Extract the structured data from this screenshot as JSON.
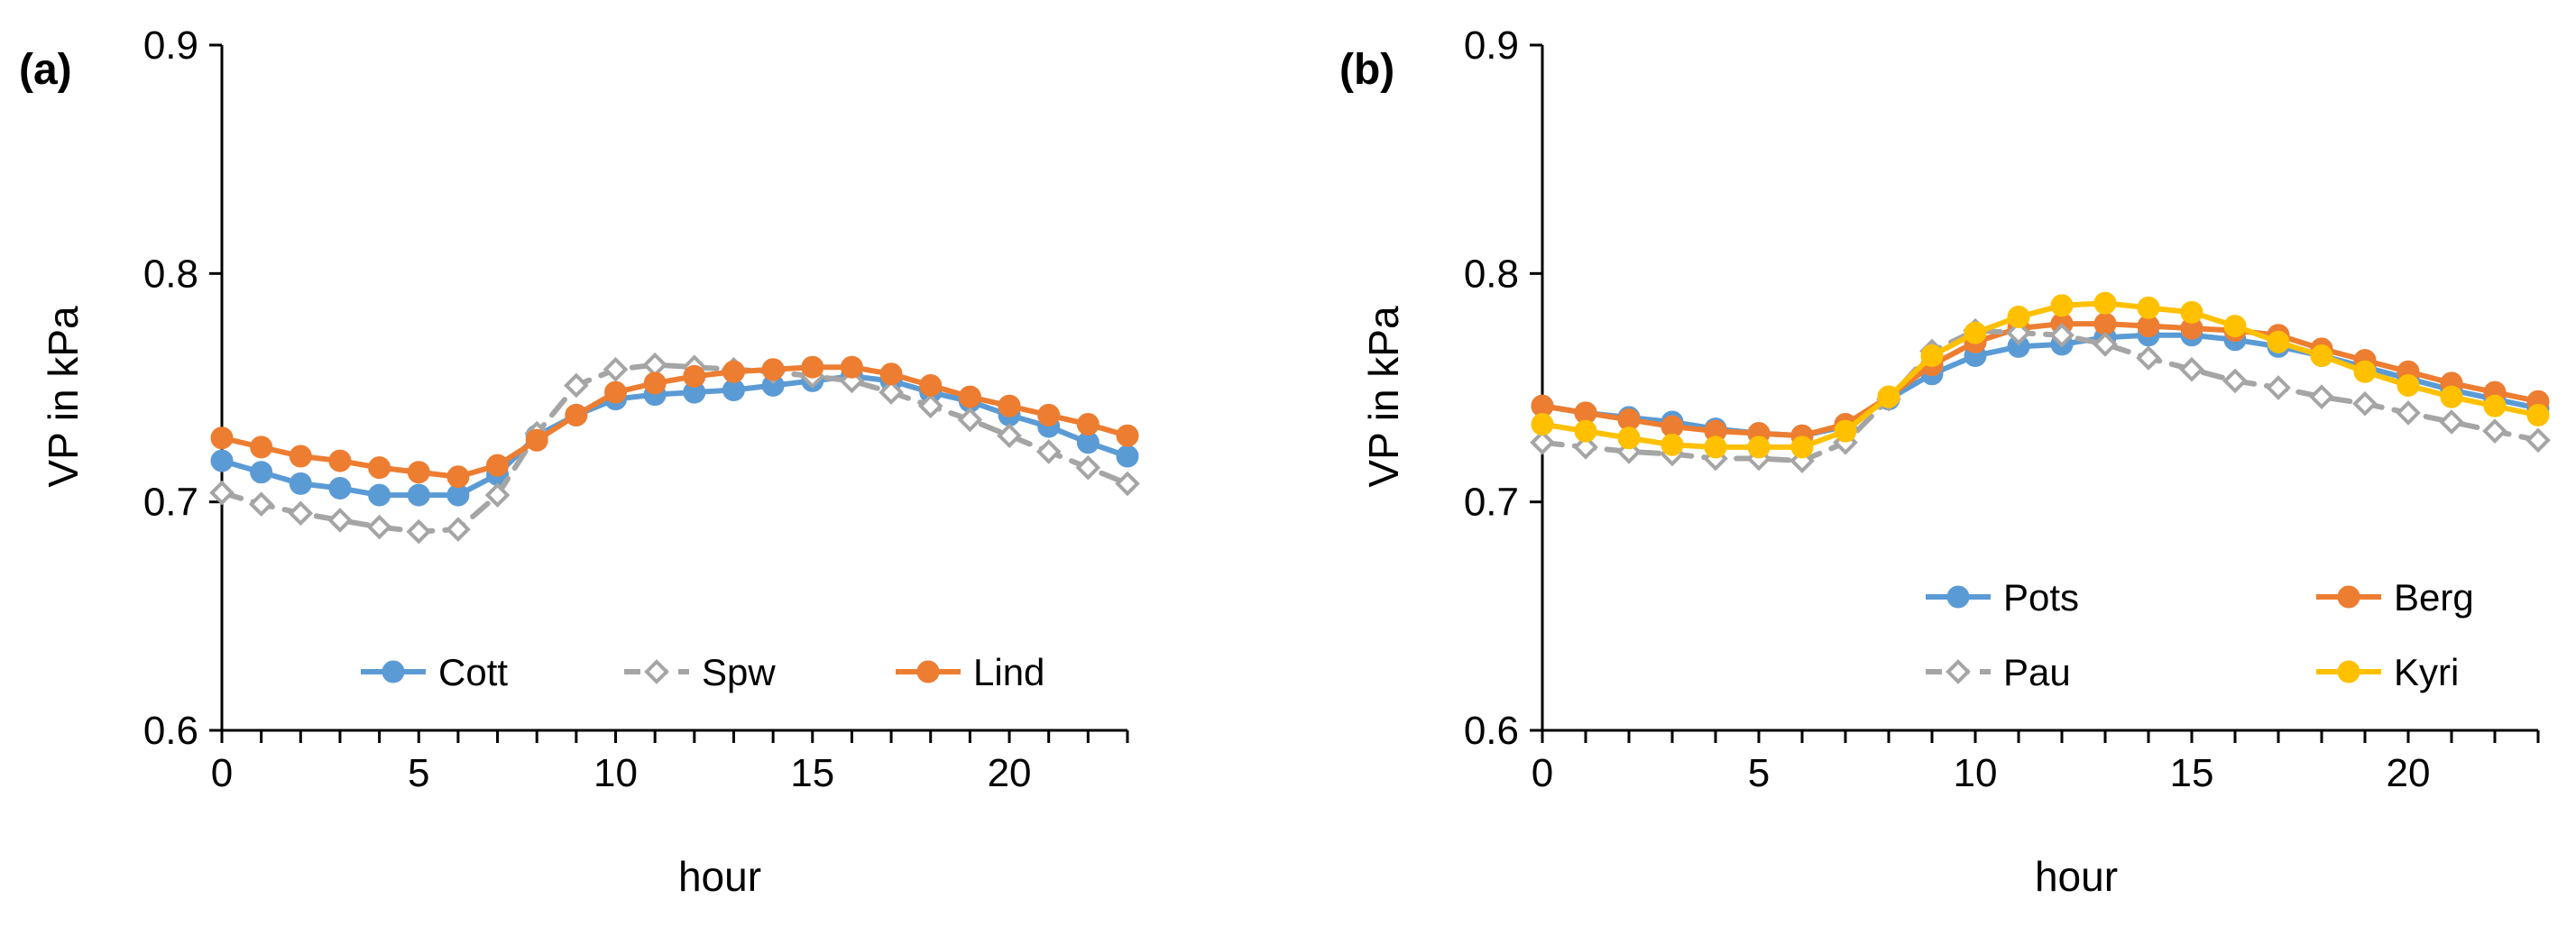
{
  "chart_data": [
    {
      "type": "line",
      "panel_label": "(a)",
      "xlabel": "hour",
      "ylabel": "VP in kPa",
      "xlim": [
        0,
        23
      ],
      "ylim": [
        0.6,
        0.9
      ],
      "xticks": [
        0,
        5,
        10,
        15,
        20
      ],
      "xtick_labels": [
        "0",
        "5",
        "10",
        "15",
        "20"
      ],
      "yticks": [
        0.6,
        0.7,
        0.8,
        0.9
      ],
      "ytick_labels": [
        "0.6",
        "0.7",
        "0.8",
        "0.9"
      ],
      "grid": false,
      "legend_position": "bottom-center",
      "x": [
        0,
        1,
        2,
        3,
        4,
        5,
        6,
        7,
        8,
        9,
        10,
        11,
        12,
        13,
        14,
        15,
        16,
        17,
        18,
        19,
        20,
        21,
        22,
        23
      ],
      "series": [
        {
          "name": "Cott",
          "color": "#5B9BD5",
          "marker": "circle-filled",
          "dash": "solid",
          "values": [
            0.718,
            0.713,
            0.708,
            0.706,
            0.703,
            0.703,
            0.703,
            0.712,
            0.729,
            0.738,
            0.745,
            0.747,
            0.748,
            0.749,
            0.751,
            0.753,
            0.755,
            0.753,
            0.748,
            0.744,
            0.738,
            0.733,
            0.726,
            0.72
          ]
        },
        {
          "name": "Spw",
          "color": "#A5A5A5",
          "marker": "diamond-open",
          "dash": "dashed",
          "values": [
            0.704,
            0.699,
            0.695,
            0.692,
            0.689,
            0.687,
            0.688,
            0.703,
            0.73,
            0.751,
            0.758,
            0.76,
            0.759,
            0.758,
            0.757,
            0.755,
            0.753,
            0.748,
            0.742,
            0.736,
            0.729,
            0.722,
            0.715,
            0.708
          ]
        },
        {
          "name": "Lind",
          "color": "#ED7D31",
          "marker": "circle-filled",
          "dash": "solid",
          "values": [
            0.728,
            0.724,
            0.72,
            0.718,
            0.715,
            0.713,
            0.711,
            0.716,
            0.727,
            0.738,
            0.748,
            0.752,
            0.755,
            0.757,
            0.758,
            0.759,
            0.759,
            0.756,
            0.751,
            0.746,
            0.742,
            0.738,
            0.734,
            0.729
          ]
        }
      ]
    },
    {
      "type": "line",
      "panel_label": "(b)",
      "xlabel": "hour",
      "ylabel": "VP in kPa",
      "xlim": [
        0,
        23
      ],
      "ylim": [
        0.6,
        0.9
      ],
      "xticks": [
        0,
        5,
        10,
        15,
        20
      ],
      "xtick_labels": [
        "0",
        "5",
        "10",
        "15",
        "20"
      ],
      "yticks": [
        0.6,
        0.7,
        0.8,
        0.9
      ],
      "ytick_labels": [
        "0.6",
        "0.7",
        "0.8",
        "0.9"
      ],
      "grid": false,
      "legend_position": "bottom-right",
      "x": [
        0,
        1,
        2,
        3,
        4,
        5,
        6,
        7,
        8,
        9,
        10,
        11,
        12,
        13,
        14,
        15,
        16,
        17,
        18,
        19,
        20,
        21,
        22,
        23
      ],
      "series": [
        {
          "name": "Pots",
          "color": "#5B9BD5",
          "marker": "circle-filled",
          "dash": "solid",
          "values": [
            0.742,
            0.739,
            0.737,
            0.735,
            0.732,
            0.73,
            0.729,
            0.733,
            0.745,
            0.756,
            0.764,
            0.768,
            0.769,
            0.772,
            0.773,
            0.773,
            0.771,
            0.768,
            0.764,
            0.759,
            0.754,
            0.749,
            0.745,
            0.741
          ]
        },
        {
          "name": "Berg",
          "color": "#ED7D31",
          "marker": "circle-filled",
          "dash": "solid",
          "values": [
            0.742,
            0.739,
            0.736,
            0.733,
            0.731,
            0.73,
            0.729,
            0.734,
            0.746,
            0.76,
            0.77,
            0.776,
            0.778,
            0.778,
            0.777,
            0.776,
            0.775,
            0.773,
            0.767,
            0.762,
            0.757,
            0.752,
            0.748,
            0.744
          ]
        },
        {
          "name": "Pau",
          "color": "#A5A5A5",
          "marker": "diamond-open",
          "dash": "dashed",
          "values": [
            0.726,
            0.724,
            0.722,
            0.721,
            0.719,
            0.719,
            0.718,
            0.726,
            0.745,
            0.766,
            0.775,
            0.774,
            0.773,
            0.769,
            0.763,
            0.758,
            0.753,
            0.75,
            0.746,
            0.743,
            0.739,
            0.735,
            0.731,
            0.727
          ]
        },
        {
          "name": "Kyri",
          "color": "#FFC000",
          "marker": "circle-filled",
          "dash": "solid",
          "values": [
            0.734,
            0.731,
            0.728,
            0.725,
            0.724,
            0.724,
            0.724,
            0.731,
            0.746,
            0.764,
            0.774,
            0.781,
            0.786,
            0.787,
            0.785,
            0.783,
            0.777,
            0.77,
            0.764,
            0.757,
            0.751,
            0.746,
            0.742,
            0.738
          ]
        }
      ]
    }
  ]
}
